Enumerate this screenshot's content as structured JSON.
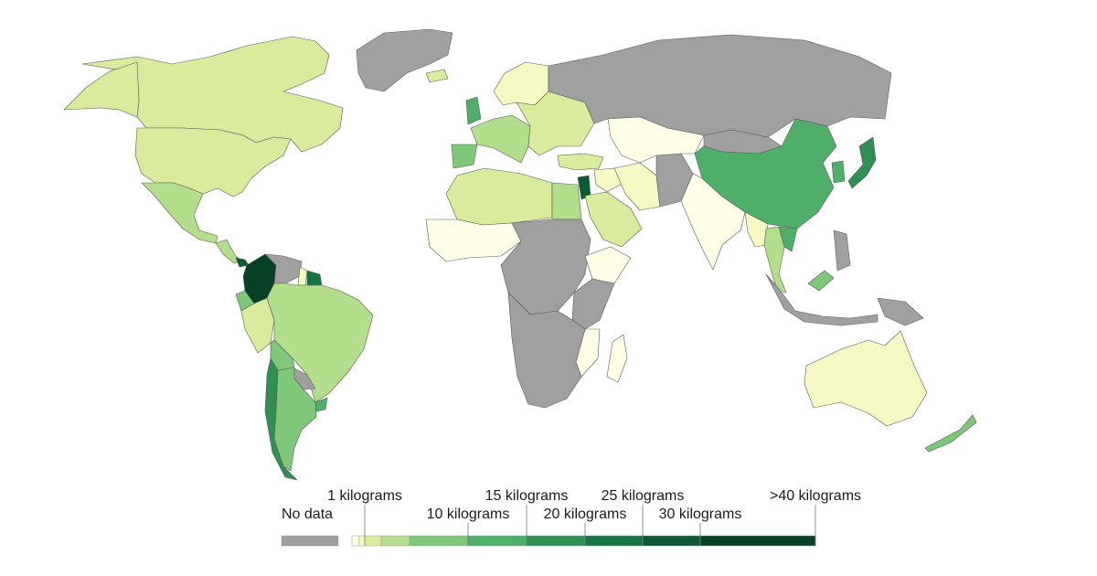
{
  "colors": {
    "no_data": "#a0a0a0",
    "bins": [
      "#fffee6",
      "#f6f9c4",
      "#d9ec9e",
      "#b3df8c",
      "#7fc87a",
      "#4eae6a",
      "#2f8f55",
      "#167443",
      "#0c5a34",
      "#074024"
    ]
  },
  "legend": {
    "no_data_label": "No data",
    "ticks": [
      {
        "label": "1 kilograms",
        "value": 1,
        "row": "top"
      },
      {
        "label": "10 kilograms",
        "value": 10,
        "row": "bottom"
      },
      {
        "label": "15 kilograms",
        "value": 15,
        "row": "top"
      },
      {
        "label": "20 kilograms",
        "value": 20,
        "row": "bottom"
      },
      {
        "label": "25 kilograms",
        "value": 25,
        "row": "top"
      },
      {
        "label": "30 kilograms",
        "value": 30,
        "row": "bottom"
      },
      {
        "label": ">40 kilograms",
        "value": 40,
        "row": "top"
      }
    ]
  },
  "regions": [
    {
      "name": "canada",
      "bin": 2
    },
    {
      "name": "greenland",
      "bin": "nodata"
    },
    {
      "name": "alaska-usa",
      "bin": 2
    },
    {
      "name": "usa",
      "bin": 2
    },
    {
      "name": "mexico",
      "bin": 3
    },
    {
      "name": "central-america",
      "bin": 3
    },
    {
      "name": "costa-rica",
      "bin": 8
    },
    {
      "name": "colombia",
      "bin": 9
    },
    {
      "name": "venezuela",
      "bin": "nodata"
    },
    {
      "name": "guyana",
      "bin": 1
    },
    {
      "name": "suriname",
      "bin": 7
    },
    {
      "name": "ecuador",
      "bin": 4
    },
    {
      "name": "peru",
      "bin": 2
    },
    {
      "name": "brazil",
      "bin": 3
    },
    {
      "name": "bolivia",
      "bin": 4
    },
    {
      "name": "paraguay",
      "bin": "nodata"
    },
    {
      "name": "chile",
      "bin": 6
    },
    {
      "name": "argentina",
      "bin": 4
    },
    {
      "name": "uruguay",
      "bin": 5
    },
    {
      "name": "iceland",
      "bin": 2
    },
    {
      "name": "uk",
      "bin": 5
    },
    {
      "name": "scandinavia",
      "bin": 1
    },
    {
      "name": "western-europe",
      "bin": 3
    },
    {
      "name": "iberia",
      "bin": 4
    },
    {
      "name": "eastern-europe",
      "bin": 2
    },
    {
      "name": "russia",
      "bin": "nodata"
    },
    {
      "name": "turkey",
      "bin": 2
    },
    {
      "name": "middle-east",
      "bin": 1
    },
    {
      "name": "levant",
      "bin": 8
    },
    {
      "name": "arabia",
      "bin": 2
    },
    {
      "name": "iran",
      "bin": 1
    },
    {
      "name": "afghanistan-pakistan",
      "bin": "nodata"
    },
    {
      "name": "central-asia",
      "bin": 0
    },
    {
      "name": "mongolia",
      "bin": "nodata"
    },
    {
      "name": "china",
      "bin": 5
    },
    {
      "name": "korea",
      "bin": 5
    },
    {
      "name": "japan",
      "bin": 6
    },
    {
      "name": "india",
      "bin": 0
    },
    {
      "name": "myanmar",
      "bin": 1
    },
    {
      "name": "thailand",
      "bin": 3
    },
    {
      "name": "vietnam",
      "bin": 5
    },
    {
      "name": "malaysia",
      "bin": 4
    },
    {
      "name": "indonesia",
      "bin": "nodata"
    },
    {
      "name": "philippines",
      "bin": "nodata"
    },
    {
      "name": "png",
      "bin": "nodata"
    },
    {
      "name": "australia",
      "bin": 1
    },
    {
      "name": "new-zealand",
      "bin": 4
    },
    {
      "name": "north-africa-west",
      "bin": 2
    },
    {
      "name": "egypt",
      "bin": 3
    },
    {
      "name": "sahel-west",
      "bin": 0
    },
    {
      "name": "central-africa",
      "bin": "nodata"
    },
    {
      "name": "ethiopia",
      "bin": 0
    },
    {
      "name": "east-africa",
      "bin": "nodata"
    },
    {
      "name": "mozambique",
      "bin": 0
    },
    {
      "name": "madagascar",
      "bin": 0
    },
    {
      "name": "southern-africa",
      "bin": "nodata"
    }
  ]
}
